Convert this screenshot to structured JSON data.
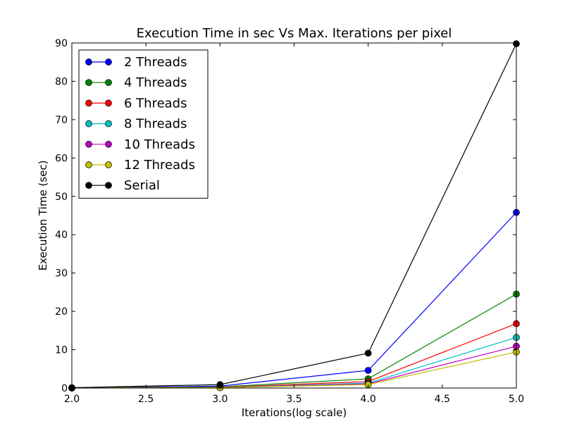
{
  "chart_data": {
    "type": "line",
    "title": "Execution Time in sec Vs Max. Iterations per pixel",
    "xlabel": "Iterations(log scale)",
    "ylabel": "Execution Time (sec)",
    "xlim": [
      2.0,
      5.0
    ],
    "ylim": [
      0,
      90
    ],
    "xticks": [
      2.0,
      2.5,
      3.0,
      3.5,
      4.0,
      4.5,
      5.0
    ],
    "xtick_labels": [
      "2.0",
      "2.5",
      "3.0",
      "3.5",
      "4.0",
      "4.5",
      "5.0"
    ],
    "yticks": [
      0,
      10,
      20,
      30,
      40,
      50,
      60,
      70,
      80,
      90
    ],
    "ytick_labels": [
      "0",
      "10",
      "20",
      "30",
      "40",
      "50",
      "60",
      "70",
      "80",
      "90"
    ],
    "grid": false,
    "legend_position": "top-left",
    "x": [
      2.0,
      3.0,
      4.0,
      5.0
    ],
    "series": [
      {
        "name": "2 Threads",
        "color": "#0000ff",
        "values": [
          0.05,
          0.5,
          4.6,
          45.8
        ]
      },
      {
        "name": "4 Threads",
        "color": "#008000",
        "values": [
          0.03,
          0.3,
          2.4,
          24.5
        ]
      },
      {
        "name": "6 Threads",
        "color": "#ff0000",
        "values": [
          0.02,
          0.2,
          1.7,
          16.8
        ]
      },
      {
        "name": "8 Threads",
        "color": "#00bfbf",
        "values": [
          0.02,
          0.15,
          1.3,
          13.2
        ]
      },
      {
        "name": "10 Threads",
        "color": "#bf00bf",
        "values": [
          0.01,
          0.12,
          1.1,
          10.9
        ]
      },
      {
        "name": "12 Threads",
        "color": "#bfbf00",
        "values": [
          0.01,
          0.1,
          0.9,
          9.4
        ]
      },
      {
        "name": "Serial",
        "color": "#000000",
        "values": [
          0.1,
          0.9,
          9.1,
          89.8
        ]
      }
    ]
  }
}
